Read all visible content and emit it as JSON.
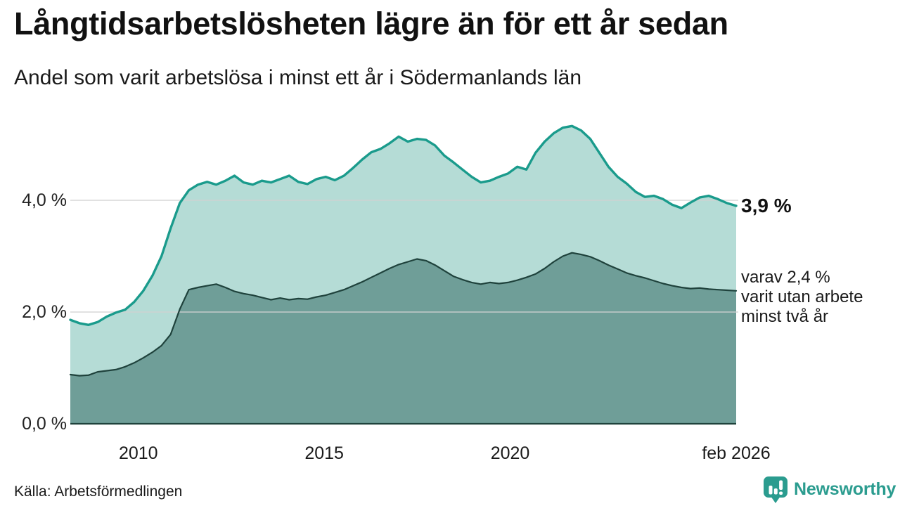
{
  "chart_data": {
    "type": "area",
    "title": "Långtidsarbetslösheten lägre än för ett år sedan",
    "subtitle": "Andel som varit arbetslösa i minst ett år i Södermanlands län",
    "x_start_year": 2008.17,
    "x_end_year": 2026.08,
    "ylim": [
      0,
      5.6
    ],
    "grid": "horizontal",
    "legend_position": "none",
    "y_ticks": [
      {
        "v": 0,
        "label": "0,0 %"
      },
      {
        "v": 2,
        "label": "2,0 %"
      },
      {
        "v": 4,
        "label": "4,0 %"
      }
    ],
    "x_ticks": [
      {
        "t": 2010,
        "label": "2010"
      },
      {
        "t": 2015,
        "label": "2015"
      },
      {
        "t": 2020,
        "label": "2020"
      },
      {
        "t": 2026.08,
        "label": "feb 2026"
      }
    ],
    "series": [
      {
        "name": "Andel arbetslösa minst ett år",
        "line_color": "#1a9b8c",
        "fill_color": "#b5dcd6",
        "end_value": 3.9,
        "values": [
          1.86,
          1.8,
          1.77,
          1.82,
          1.92,
          1.99,
          2.04,
          2.18,
          2.38,
          2.65,
          3.0,
          3.5,
          3.95,
          4.18,
          4.28,
          4.33,
          4.28,
          4.35,
          4.44,
          4.32,
          4.28,
          4.35,
          4.32,
          4.38,
          4.44,
          4.33,
          4.29,
          4.38,
          4.42,
          4.36,
          4.44,
          4.58,
          4.73,
          4.86,
          4.92,
          5.02,
          5.14,
          5.05,
          5.1,
          5.08,
          4.98,
          4.8,
          4.68,
          4.55,
          4.42,
          4.32,
          4.35,
          4.42,
          4.48,
          4.6,
          4.55,
          4.85,
          5.05,
          5.2,
          5.3,
          5.33,
          5.25,
          5.1,
          4.85,
          4.6,
          4.42,
          4.3,
          4.15,
          4.06,
          4.08,
          4.02,
          3.92,
          3.86,
          3.96,
          4.05,
          4.08,
          4.02,
          3.95,
          3.9
        ]
      },
      {
        "name": "Andel arbetslösa minst två år",
        "line_color": "#1f423c",
        "fill_color": "#6f9e98",
        "end_value": 2.4,
        "values": [
          0.88,
          0.86,
          0.87,
          0.93,
          0.95,
          0.97,
          1.02,
          1.09,
          1.18,
          1.28,
          1.4,
          1.6,
          2.05,
          2.4,
          2.44,
          2.47,
          2.5,
          2.44,
          2.37,
          2.33,
          2.3,
          2.26,
          2.22,
          2.25,
          2.22,
          2.24,
          2.23,
          2.27,
          2.3,
          2.35,
          2.4,
          2.47,
          2.54,
          2.62,
          2.7,
          2.78,
          2.85,
          2.9,
          2.95,
          2.92,
          2.84,
          2.74,
          2.64,
          2.58,
          2.53,
          2.5,
          2.53,
          2.51,
          2.53,
          2.57,
          2.62,
          2.68,
          2.78,
          2.9,
          3.0,
          3.06,
          3.03,
          2.99,
          2.92,
          2.84,
          2.77,
          2.7,
          2.65,
          2.61,
          2.56,
          2.51,
          2.47,
          2.44,
          2.42,
          2.43,
          2.41,
          2.4,
          2.39,
          2.38
        ]
      }
    ],
    "annotations": {
      "end_value_label": "3,9 %",
      "secondary_lines": [
        "varav 2,4 %",
        "varit utan arbete",
        "minst två år"
      ]
    }
  },
  "footer": {
    "source": "Källa: Arbetsförmedlingen",
    "brand": "Newsworthy"
  },
  "colors": {
    "gridline": "#d2d2d2",
    "axis_line": "#1f423c",
    "brand_teal": "#2b9c8f",
    "background": "#ffffff"
  }
}
